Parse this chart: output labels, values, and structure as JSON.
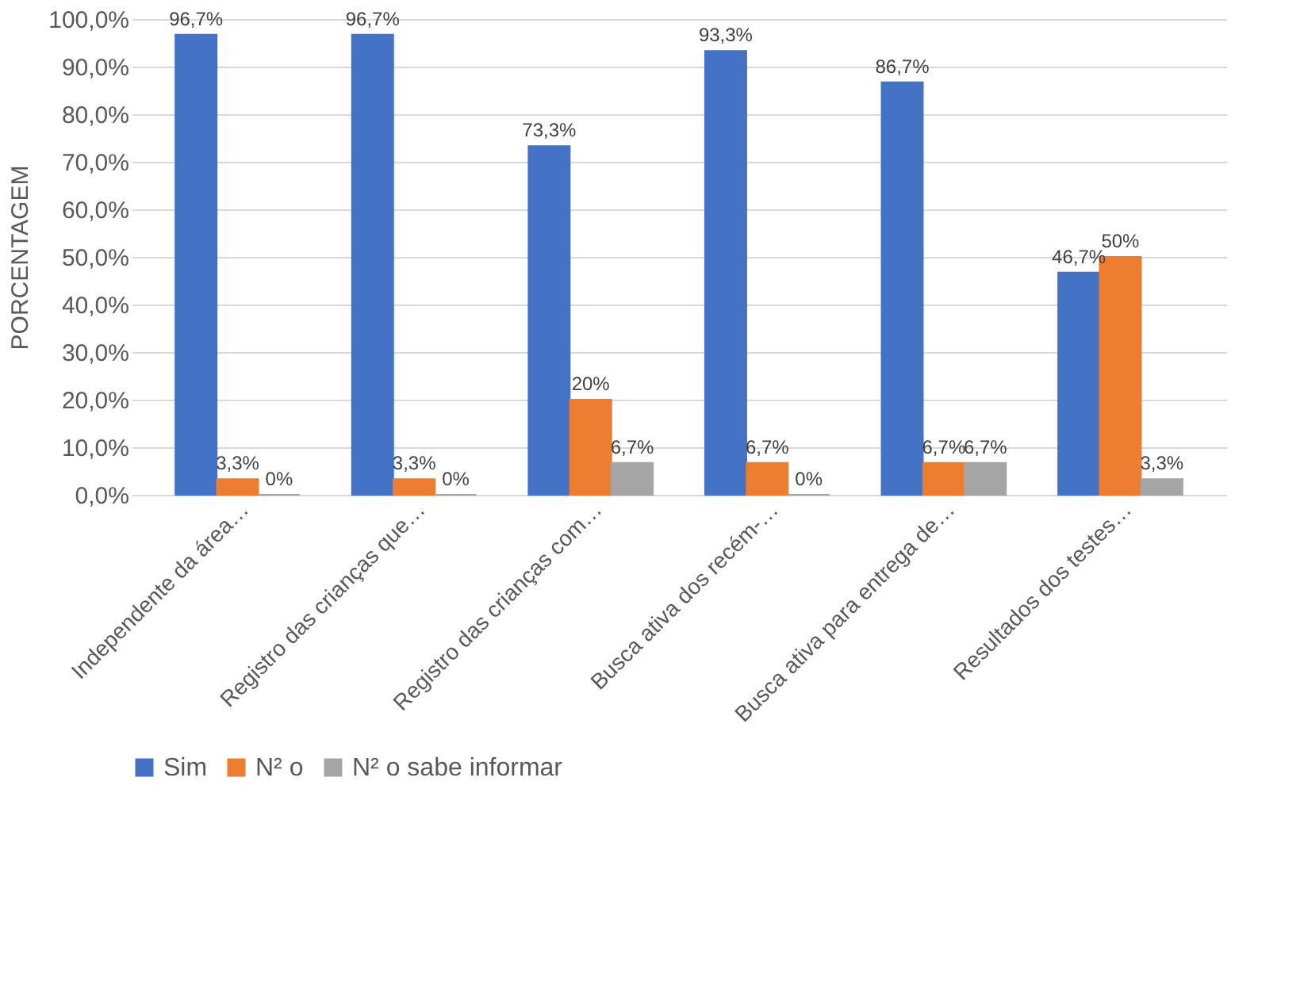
{
  "chart_data": {
    "type": "bar",
    "ylabel": "PORCENTAGEM",
    "categories": [
      "Independente da área…",
      "Registro das crianças que…",
      "Registro das crianças com…",
      "Busca ativa dos recém-…",
      "Busca ativa para entrega de…",
      "Resultados dos testes…"
    ],
    "series": [
      {
        "name": "Sim",
        "color": "#4472c4",
        "values": [
          96.7,
          96.7,
          73.3,
          93.3,
          86.7,
          46.7
        ],
        "value_labels": [
          "96,7%",
          "96,7%",
          "73,3%",
          "93,3%",
          "86,7%",
          "46,7%"
        ]
      },
      {
        "name": "N² o",
        "color": "#ed7d31",
        "values": [
          3.3,
          3.3,
          20,
          6.7,
          6.7,
          50
        ],
        "value_labels": [
          "3,3%",
          "3,3%",
          "20%",
          "6,7%",
          "6,7%",
          "50%"
        ]
      },
      {
        "name": "N² o sabe informar",
        "color": "#a5a5a5",
        "values": [
          0,
          0,
          6.7,
          0,
          6.7,
          3.3
        ],
        "value_labels": [
          "0%",
          "0%",
          "6,7%",
          "0%",
          "6,7%",
          "3,3%"
        ]
      }
    ],
    "ylim": [
      0,
      100
    ],
    "yticks": [
      {
        "value": 0,
        "label": "0,0%"
      },
      {
        "value": 10,
        "label": "10,0%"
      },
      {
        "value": 20,
        "label": "20,0%"
      },
      {
        "value": 30,
        "label": "30,0%"
      },
      {
        "value": 40,
        "label": "40,0%"
      },
      {
        "value": 50,
        "label": "50,0%"
      },
      {
        "value": 60,
        "label": "60,0%"
      },
      {
        "value": 70,
        "label": "70,0%"
      },
      {
        "value": 80,
        "label": "80,0%"
      },
      {
        "value": 90,
        "label": "90,0%"
      },
      {
        "value": 100,
        "label": "100,0%"
      }
    ],
    "grid": "y",
    "legend": "bottom"
  }
}
